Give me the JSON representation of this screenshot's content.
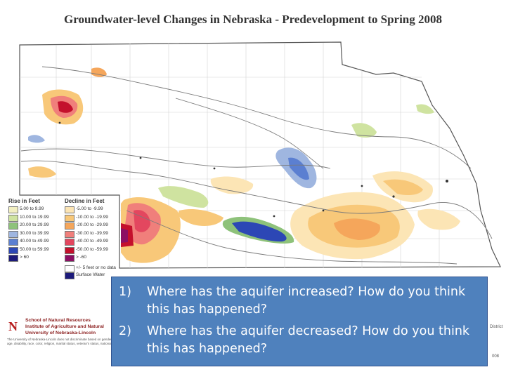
{
  "title": "Groundwater-level Changes in Nebraska - Predevelopment to Spring 2008",
  "legend": {
    "rise_header": "Rise in Feet",
    "decline_header": "Decline in Feet",
    "rise_items": [
      {
        "label": "5.00 to 9.99",
        "color": "#f2efc1"
      },
      {
        "label": "10.00 to 19.99",
        "color": "#cfe3a0"
      },
      {
        "label": "20.00 to 29.99",
        "color": "#8ec27a"
      },
      {
        "label": "30.00 to 39.99",
        "color": "#9fb6e0"
      },
      {
        "label": "40.00 to 49.99",
        "color": "#5b7fd1"
      },
      {
        "label": "50.00 to 59.99",
        "color": "#2c47b5"
      },
      {
        "label": "> 60",
        "color": "#1c1a7a"
      }
    ],
    "decline_items": [
      {
        "label": "-5.00 to -9.99",
        "color": "#fce5b5"
      },
      {
        "label": "-10.00 to -19.99",
        "color": "#f8c879"
      },
      {
        "label": "-20.00 to -29.99",
        "color": "#f5a65b"
      },
      {
        "label": "-30.00 to -39.99",
        "color": "#f07f7b"
      },
      {
        "label": "-40.00 to -49.99",
        "color": "#e3475f"
      },
      {
        "label": "-50.00 to -59.99",
        "color": "#c4102c"
      },
      {
        "label": "> -60",
        "color": "#8c0f63"
      }
    ],
    "no_data_label": "+/- 5 feet or no data",
    "surface_water_label": "Surface Water"
  },
  "footer": {
    "logo_letters": "N",
    "logo_sub": "IANR",
    "lines": [
      "School of Natural Resources",
      "Institute of Agriculture and Natural",
      "University of Nebraska-Lincoln"
    ],
    "fine_print": "The University of Nebraska-Lincoln does not discriminate based on gender, age, disability, race, color, religion, marital status, veteran's status, national"
  },
  "right_fragments": {
    "district": "District",
    "year": "008"
  },
  "questions": [
    {
      "num": "1)",
      "text": "Where has the aquifer increased? How do you think this has happened?"
    },
    {
      "num": "2)",
      "text": "Where has the aquifer decreased? How do you think this has happened?"
    }
  ],
  "colors": {
    "box": "#4f81bd",
    "box_text": "#ffffff",
    "border": "#666666",
    "rivers": "#7a7a7a"
  }
}
